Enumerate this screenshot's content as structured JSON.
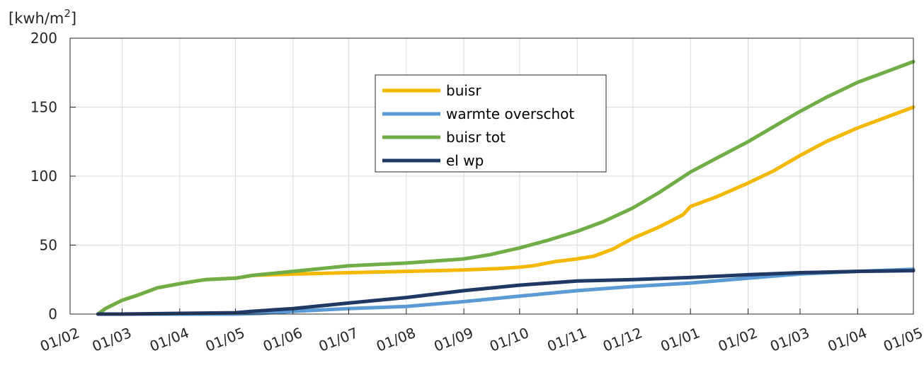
{
  "chart_data": {
    "type": "line",
    "y_unit": "[kwh/m",
    "y_unit_superscript": "2",
    "y_unit_close": "]",
    "xlabel": "",
    "ylabel": "",
    "ylim": [
      0,
      200
    ],
    "yticks": [
      0,
      50,
      100,
      150,
      200
    ],
    "xlim": [
      "2022-02-01",
      "2023-05-01"
    ],
    "xticks": [
      {
        "date": "2022-02-01",
        "label": "01/02"
      },
      {
        "date": "2022-03-01",
        "label": "01/03"
      },
      {
        "date": "2022-04-01",
        "label": "01/04"
      },
      {
        "date": "2022-05-01",
        "label": "01/05"
      },
      {
        "date": "2022-06-01",
        "label": "01/06"
      },
      {
        "date": "2022-07-01",
        "label": "01/07"
      },
      {
        "date": "2022-08-01",
        "label": "01/08"
      },
      {
        "date": "2022-09-01",
        "label": "01/09"
      },
      {
        "date": "2022-10-01",
        "label": "01/10"
      },
      {
        "date": "2022-11-01",
        "label": "01/11"
      },
      {
        "date": "2022-12-01",
        "label": "01/12"
      },
      {
        "date": "2023-01-01",
        "label": "01/01"
      },
      {
        "date": "2023-02-01",
        "label": "01/02"
      },
      {
        "date": "2023-03-01",
        "label": "01/03"
      },
      {
        "date": "2023-04-01",
        "label": "01/04"
      },
      {
        "date": "2023-05-01",
        "label": "01/05"
      }
    ],
    "grid": true,
    "legend_position": "top-center",
    "series": [
      {
        "name": "buisr",
        "color": "#F5B800",
        "x": [
          "2022-02-16",
          "2022-02-20",
          "2022-03-01",
          "2022-03-10",
          "2022-03-20",
          "2022-04-01",
          "2022-04-10",
          "2022-04-15",
          "2022-05-01",
          "2022-05-10",
          "2022-06-01",
          "2022-07-01",
          "2022-08-01",
          "2022-09-01",
          "2022-09-20",
          "2022-10-01",
          "2022-10-08",
          "2022-10-20",
          "2022-11-01",
          "2022-11-10",
          "2022-11-20",
          "2022-12-01",
          "2022-12-15",
          "2022-12-28",
          "2023-01-01",
          "2023-01-15",
          "2023-02-01",
          "2023-02-15",
          "2023-03-01",
          "2023-03-15",
          "2023-04-01",
          "2023-04-15",
          "2023-05-01"
        ],
        "values": [
          0,
          4,
          10,
          14,
          19,
          22,
          24,
          25,
          26,
          28,
          29,
          30,
          31,
          32,
          33,
          34,
          35,
          38,
          40,
          42,
          47,
          55,
          63,
          72,
          78,
          85,
          95,
          104,
          115,
          125,
          135,
          142,
          150
        ]
      },
      {
        "name": "warmte overschot",
        "color": "#5B9BD5",
        "x": [
          "2022-02-16",
          "2022-03-01",
          "2022-04-01",
          "2022-05-01",
          "2022-05-15",
          "2022-06-01",
          "2022-07-01",
          "2022-08-01",
          "2022-09-01",
          "2022-10-01",
          "2022-11-01",
          "2022-12-01",
          "2023-01-01",
          "2023-02-01",
          "2023-03-01",
          "2023-04-01",
          "2023-05-01"
        ],
        "values": [
          0,
          0,
          0,
          0,
          0.5,
          2,
          4,
          5.5,
          9,
          13,
          17,
          20,
          22.5,
          26,
          29,
          31,
          32.5
        ]
      },
      {
        "name": "buisr tot",
        "color": "#70AD47",
        "x": [
          "2022-02-16",
          "2022-02-20",
          "2022-03-01",
          "2022-03-10",
          "2022-03-20",
          "2022-04-01",
          "2022-04-10",
          "2022-04-15",
          "2022-05-01",
          "2022-05-10",
          "2022-06-01",
          "2022-07-01",
          "2022-08-01",
          "2022-09-01",
          "2022-09-15",
          "2022-10-01",
          "2022-10-15",
          "2022-11-01",
          "2022-11-15",
          "2022-12-01",
          "2022-12-15",
          "2023-01-01",
          "2023-01-15",
          "2023-02-01",
          "2023-02-15",
          "2023-03-01",
          "2023-03-15",
          "2023-04-01",
          "2023-04-15",
          "2023-05-01"
        ],
        "values": [
          0,
          4,
          10,
          14,
          19,
          22,
          24,
          25,
          26,
          28,
          31,
          35,
          37,
          40,
          43,
          48,
          53,
          60,
          67,
          77,
          88,
          103,
          113,
          125,
          136,
          147,
          157,
          168,
          175,
          183
        ]
      },
      {
        "name": "el wp",
        "color": "#203864",
        "x": [
          "2022-02-16",
          "2022-03-01",
          "2022-04-01",
          "2022-05-01",
          "2022-05-10",
          "2022-06-01",
          "2022-07-01",
          "2022-08-01",
          "2022-09-01",
          "2022-10-01",
          "2022-11-01",
          "2022-12-01",
          "2023-01-01",
          "2023-02-01",
          "2023-03-01",
          "2023-04-01",
          "2023-05-01"
        ],
        "values": [
          0,
          0,
          0.5,
          1,
          2,
          4,
          8,
          12,
          17,
          21,
          24,
          25,
          26.5,
          28.5,
          30,
          31,
          31.5
        ]
      }
    ]
  }
}
